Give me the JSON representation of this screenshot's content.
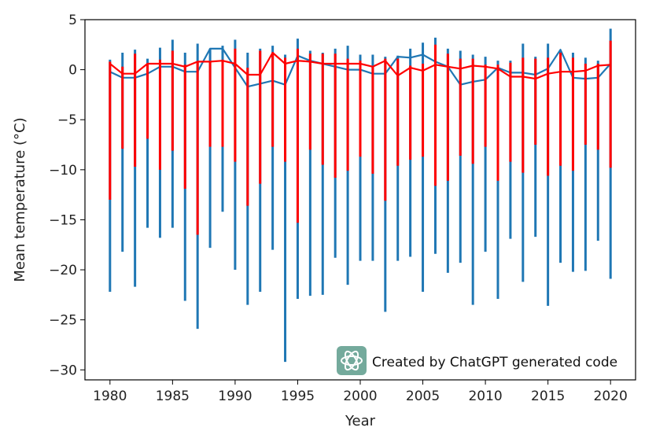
{
  "chart_data": {
    "type": "line",
    "xlabel": "Year",
    "ylabel": "Mean temperature (°C)",
    "xlim": [
      1978,
      2022
    ],
    "ylim": [
      -31,
      5
    ],
    "x_ticks": [
      1980,
      1985,
      1990,
      1995,
      2000,
      2005,
      2010,
      2015,
      2020
    ],
    "y_ticks": [
      5,
      0,
      -5,
      -10,
      -15,
      -20,
      -25,
      -30
    ],
    "grid": false,
    "years": [
      1980,
      1981,
      1982,
      1983,
      1984,
      1985,
      1986,
      1987,
      1988,
      1989,
      1990,
      1991,
      1992,
      1993,
      1994,
      1995,
      1996,
      1997,
      1998,
      1999,
      2000,
      2001,
      2002,
      2003,
      2004,
      2005,
      2006,
      2007,
      2008,
      2009,
      2010,
      2011,
      2012,
      2013,
      2014,
      2015,
      2016,
      2017,
      2018,
      2019,
      2020
    ],
    "series": [
      {
        "color": "#1f77b4",
        "min": [
          -22.2,
          -18.2,
          -21.7,
          -15.8,
          -16.8,
          -15.8,
          -23.1,
          -25.9,
          -17.8,
          -14.2,
          -20.0,
          -23.5,
          -22.2,
          -18.0,
          -29.2,
          -22.9,
          -22.6,
          -22.5,
          -18.8,
          -21.5,
          -19.1,
          -19.1,
          -24.2,
          -19.1,
          -18.7,
          -22.2,
          -18.4,
          -20.3,
          -19.3,
          -23.5,
          -18.2,
          -22.9,
          -16.9,
          -21.2,
          -16.7,
          -23.6,
          -19.3,
          -20.2,
          -20.1,
          -17.1,
          -20.9
        ],
        "max": [
          1.0,
          1.7,
          2.0,
          1.1,
          2.2,
          3.0,
          1.7,
          2.6,
          2.1,
          2.4,
          3.0,
          1.7,
          2.1,
          2.4,
          1.5,
          3.1,
          1.9,
          1.7,
          2.1,
          2.4,
          1.5,
          1.5,
          1.3,
          1.4,
          2.1,
          2.7,
          3.2,
          2.1,
          1.9,
          1.5,
          1.3,
          0.9,
          0.9,
          2.6,
          1.3,
          2.6,
          1.9,
          1.7,
          1.2,
          0.9,
          4.1
        ],
        "mean": [
          -0.2,
          -0.8,
          -0.8,
          -0.4,
          0.3,
          0.3,
          -0.2,
          -0.2,
          2.1,
          2.1,
          0.2,
          -1.7,
          -1.4,
          -1.1,
          -1.5,
          1.4,
          0.9,
          0.6,
          0.3,
          0.0,
          0.0,
          -0.4,
          -0.4,
          1.3,
          1.2,
          1.5,
          0.8,
          0.3,
          -1.5,
          -1.2,
          -1.0,
          0.2,
          -0.3,
          -0.3,
          -0.5,
          0.1,
          2.0,
          -0.8,
          -0.9,
          -0.8,
          0.6
        ]
      },
      {
        "color": "#ff0000",
        "min": [
          -13.0,
          -7.9,
          -9.7,
          -6.9,
          -10.0,
          -8.1,
          -11.9,
          -16.5,
          -7.7,
          -7.7,
          -9.2,
          -13.6,
          -11.4,
          -7.7,
          -9.2,
          -15.3,
          -8.0,
          -9.5,
          -10.8,
          -10.1,
          -8.7,
          -10.4,
          -13.1,
          -9.6,
          -9.0,
          -8.7,
          -11.6,
          -11.1,
          -8.6,
          -9.4,
          -7.7,
          -11.1,
          -9.2,
          -10.3,
          -7.5,
          -10.6,
          -9.6,
          -10.1,
          -7.5,
          -8.0,
          -9.8
        ],
        "max": [
          0.8,
          0.3,
          1.6,
          0.6,
          1.0,
          1.9,
          0.5,
          0.8,
          0.8,
          1.0,
          2.1,
          0.2,
          1.9,
          1.7,
          1.2,
          2.1,
          1.6,
          1.6,
          1.6,
          1.1,
          0.9,
          0.3,
          1.1,
          1.1,
          0.4,
          0.6,
          2.5,
          1.6,
          1.1,
          1.1,
          0.5,
          0.5,
          0.7,
          1.2,
          1.1,
          1.2,
          1.7,
          1.2,
          0.6,
          0.6,
          2.9
        ],
        "mean": [
          0.6,
          -0.4,
          -0.4,
          0.6,
          0.6,
          0.6,
          0.3,
          0.8,
          0.8,
          0.9,
          0.6,
          -0.5,
          -0.5,
          1.7,
          0.6,
          0.9,
          0.8,
          0.6,
          0.6,
          0.6,
          0.6,
          0.3,
          0.9,
          -0.6,
          0.2,
          -0.1,
          0.5,
          0.3,
          0.1,
          0.4,
          0.3,
          0.1,
          -0.7,
          -0.7,
          -0.9,
          -0.4,
          -0.2,
          -0.2,
          -0.1,
          0.4,
          0.5
        ]
      }
    ]
  },
  "credit": {
    "text": "Created by ChatGPT generated code",
    "badge_color": "#74aa9c",
    "icon": "openai-logo-icon"
  }
}
